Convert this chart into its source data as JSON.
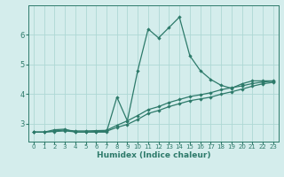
{
  "xlabel": "Humidex (Indice chaleur)",
  "background_color": "#d4edec",
  "grid_color": "#aed8d5",
  "line_color": "#2d7a6a",
  "x_values": [
    0,
    1,
    2,
    3,
    4,
    5,
    6,
    7,
    8,
    9,
    10,
    11,
    12,
    13,
    14,
    15,
    16,
    17,
    18,
    19,
    20,
    21,
    22,
    23
  ],
  "line1_y": [
    2.72,
    2.72,
    2.8,
    2.82,
    2.72,
    2.72,
    2.72,
    2.72,
    3.9,
    3.1,
    4.8,
    6.2,
    5.9,
    6.25,
    6.6,
    5.3,
    4.8,
    4.5,
    4.3,
    4.2,
    4.35,
    4.45,
    4.45,
    4.45
  ],
  "line2_y": [
    2.72,
    2.72,
    2.76,
    2.79,
    2.76,
    2.76,
    2.77,
    2.78,
    2.95,
    3.1,
    3.28,
    3.48,
    3.58,
    3.72,
    3.82,
    3.92,
    3.98,
    4.05,
    4.15,
    4.22,
    4.28,
    4.36,
    4.41,
    4.44
  ],
  "line3_y": [
    2.72,
    2.72,
    2.74,
    2.76,
    2.73,
    2.73,
    2.74,
    2.75,
    2.88,
    2.98,
    3.15,
    3.35,
    3.45,
    3.58,
    3.68,
    3.78,
    3.84,
    3.9,
    4.0,
    4.08,
    4.17,
    4.27,
    4.35,
    4.4
  ],
  "ylim": [
    2.4,
    7.0
  ],
  "yticks": [
    3,
    4,
    5,
    6
  ],
  "xtick_labels": [
    "0",
    "1",
    "2",
    "3",
    "4",
    "5",
    "6",
    "7",
    "8",
    "9",
    "10",
    "11",
    "12",
    "13",
    "14",
    "15",
    "16",
    "17",
    "18",
    "19",
    "20",
    "21",
    "22",
    "23"
  ]
}
